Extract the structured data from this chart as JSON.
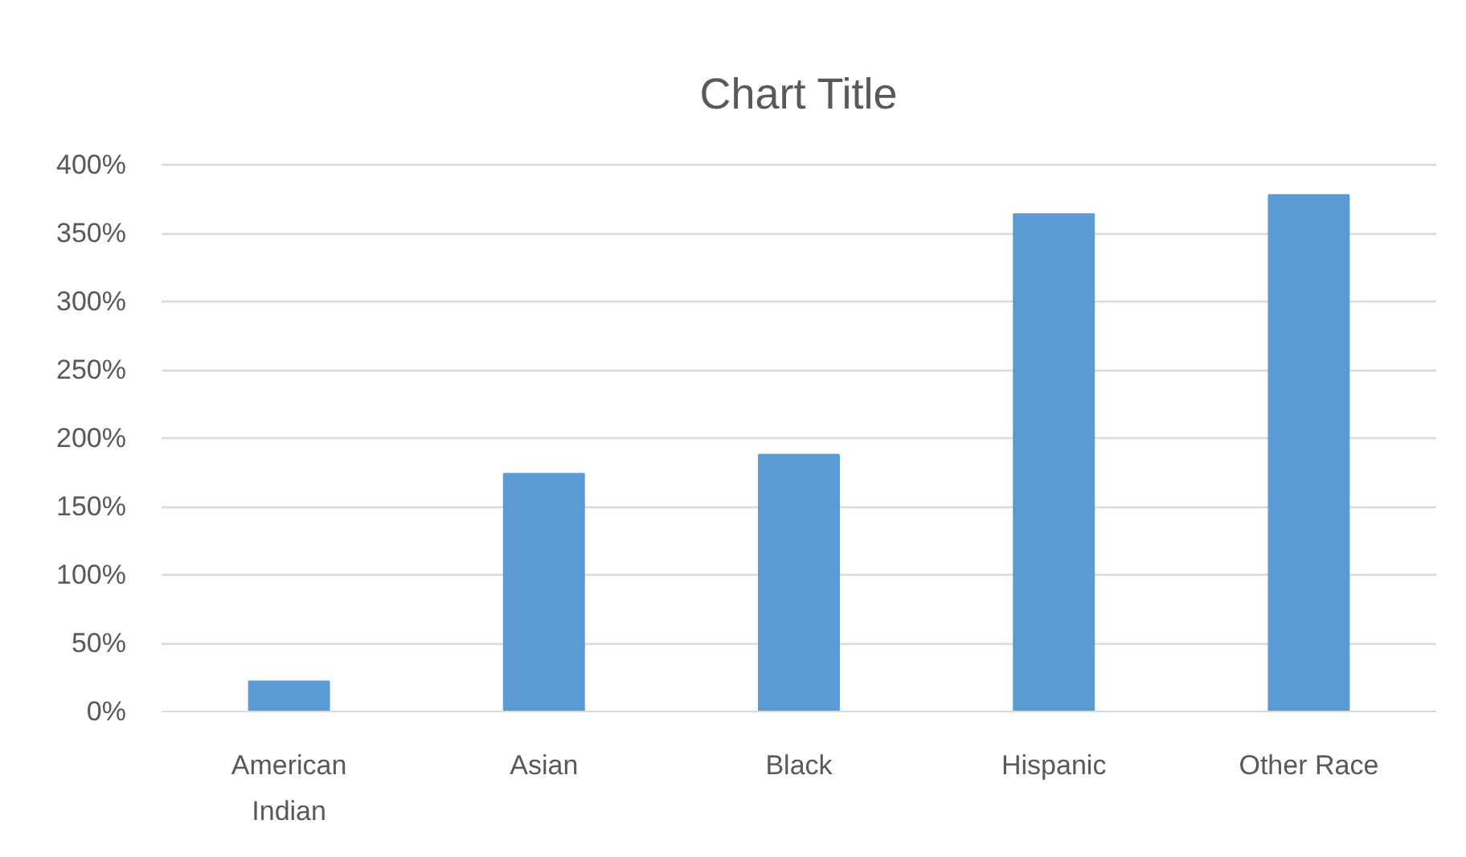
{
  "chart_data": {
    "type": "bar",
    "title": "Chart Title",
    "categories": [
      "American Indian",
      "Asian",
      "Black",
      "Hispanic",
      "Other Race"
    ],
    "values": [
      22,
      174,
      188,
      364,
      378
    ],
    "color": "#5b9bd5",
    "ylim": [
      0,
      400
    ],
    "yticks": [
      {
        "value": 0,
        "label": "0%"
      },
      {
        "value": 50,
        "label": "50%"
      },
      {
        "value": 100,
        "label": "100%"
      },
      {
        "value": 150,
        "label": "150%"
      },
      {
        "value": 200,
        "label": "200%"
      },
      {
        "value": 250,
        "label": "250%"
      },
      {
        "value": 300,
        "label": "300%"
      },
      {
        "value": 350,
        "label": "350%"
      },
      {
        "value": 400,
        "label": "400%"
      }
    ],
    "grid": "y"
  }
}
